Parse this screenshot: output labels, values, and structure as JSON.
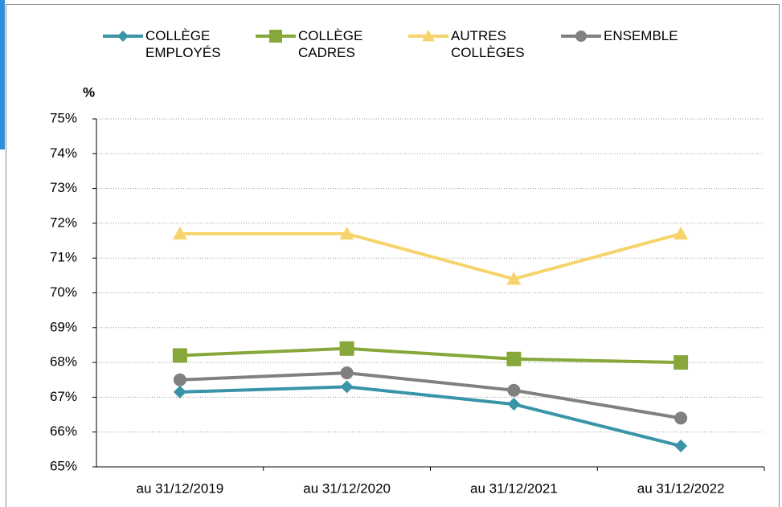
{
  "chart_data": {
    "type": "line",
    "ylabel": "%",
    "categories": [
      "au 31/12/2019",
      "au 31/12/2020",
      "au 31/12/2021",
      "au 31/12/2022"
    ],
    "series": [
      {
        "name": "COLLÈGE EMPLOYÉS",
        "color": "#3a94a8",
        "marker": "diamond",
        "values": [
          67.15,
          67.3,
          66.8,
          65.6
        ]
      },
      {
        "name": "COLLÈGE CADRES",
        "color": "#86a83a",
        "marker": "square",
        "values": [
          68.2,
          68.4,
          68.1,
          68.0
        ]
      },
      {
        "name": "AUTRES COLLÈGES",
        "color": "#f7d46b",
        "marker": "triangle",
        "values": [
          71.7,
          71.7,
          70.4,
          71.7
        ]
      },
      {
        "name": "ENSEMBLE",
        "color": "#808080",
        "marker": "circle",
        "values": [
          67.5,
          67.7,
          67.2,
          66.4
        ]
      }
    ],
    "ylim": [
      65,
      75
    ],
    "yticks": [
      {
        "value": 65,
        "label": "65%"
      },
      {
        "value": 66,
        "label": "66%"
      },
      {
        "value": 67,
        "label": "67%"
      },
      {
        "value": 68,
        "label": "68%"
      },
      {
        "value": 69,
        "label": "69%"
      },
      {
        "value": 70,
        "label": "70%"
      },
      {
        "value": 71,
        "label": "71%"
      },
      {
        "value": 72,
        "label": "72%"
      },
      {
        "value": 73,
        "label": "73%"
      },
      {
        "value": 74,
        "label": "74%"
      },
      {
        "value": 75,
        "label": "75%"
      }
    ],
    "grid": true,
    "legend": "top"
  }
}
